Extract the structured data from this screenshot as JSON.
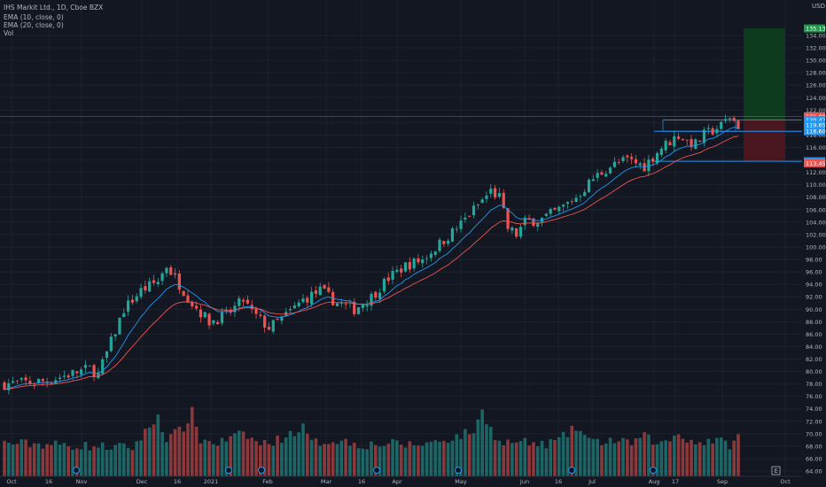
{
  "legend": {
    "symbol": "IHS Markit Ltd., 1D, Cboe BZX",
    "ema10": "EMA (10, close, 0)",
    "ema20": "EMA (20, close, 0)",
    "vol": "Vol"
  },
  "currency": "USD",
  "scale_button": "E",
  "colors": {
    "background": "#131722",
    "grid": "#1e2230",
    "up": "#26a69a",
    "down": "#ef5350",
    "ema10": "#2196f3",
    "ema20": "#ef5350",
    "axis_text": "#b2b5be",
    "profit_zone": "#0e3b1e",
    "loss_zone": "#4a1720",
    "level_line": "#2196f3"
  },
  "price_labels": [
    {
      "value": "135.13",
      "color": "#1b9a4a"
    },
    {
      "value": "121.00",
      "color": "#ef5350"
    },
    {
      "value": "120.42",
      "color": "#2196f3"
    },
    {
      "value": "119.65",
      "color": "#2196f3"
    },
    {
      "value": "118.60",
      "color": "#2196f3"
    },
    {
      "value": "113.78",
      "color": "#2196f3"
    },
    {
      "value": "113.45",
      "color": "#ef5350"
    }
  ],
  "chart_data": {
    "type": "candlestick",
    "title": "IHS Markit Ltd., 1D, Cboe BZX",
    "y_axis": {
      "min": 64,
      "max": 136,
      "ticks": [
        "64.00",
        "66.00",
        "68.00",
        "70.00",
        "72.00",
        "74.00",
        "76.00",
        "78.00",
        "80.00",
        "82.00",
        "84.00",
        "86.00",
        "88.00",
        "90.00",
        "92.00",
        "94.00",
        "96.00",
        "98.00",
        "100.00",
        "102.00",
        "104.00",
        "106.00",
        "108.00",
        "110.00",
        "112.00",
        "114.00",
        "116.00",
        "118.00",
        "120.00",
        "122.00",
        "124.00",
        "126.00",
        "128.00",
        "130.00",
        "132.00",
        "134.00"
      ]
    },
    "x_axis": {
      "ticks": [
        "Oct",
        "16",
        "Nov",
        "Dec",
        "16",
        "2021",
        "Feb",
        "Mar",
        "16",
        "Apr",
        "May",
        "Jun",
        "16",
        "Jul",
        "Aug",
        "17",
        "Sep",
        "Oct"
      ]
    },
    "series_names": [
      "EMA (10, close, 0)",
      "EMA (20, close, 0)",
      "Vol"
    ],
    "price_keypoints": [
      [
        0,
        78
      ],
      [
        10,
        78.5
      ],
      [
        20,
        80.5
      ],
      [
        22,
        79.5
      ],
      [
        24,
        83
      ],
      [
        28,
        90
      ],
      [
        32,
        93
      ],
      [
        36,
        94.5
      ],
      [
        38,
        97
      ],
      [
        40,
        95
      ],
      [
        44,
        91
      ],
      [
        48,
        88
      ],
      [
        52,
        89
      ],
      [
        56,
        91.5
      ],
      [
        58,
        89.5
      ],
      [
        62,
        87
      ],
      [
        66,
        89
      ],
      [
        70,
        91.5
      ],
      [
        74,
        93
      ],
      [
        78,
        91
      ],
      [
        82,
        90
      ],
      [
        86,
        92
      ],
      [
        90,
        95
      ],
      [
        94,
        97
      ],
      [
        98,
        98
      ],
      [
        102,
        100.5
      ],
      [
        106,
        103
      ],
      [
        110,
        106
      ],
      [
        114,
        109
      ],
      [
        116,
        108
      ],
      [
        118,
        103
      ],
      [
        120,
        102
      ],
      [
        122,
        104
      ],
      [
        126,
        104.5
      ],
      [
        130,
        106
      ],
      [
        134,
        108
      ],
      [
        138,
        111
      ],
      [
        142,
        113
      ],
      [
        146,
        114
      ],
      [
        150,
        113
      ],
      [
        154,
        116
      ],
      [
        158,
        118
      ],
      [
        160,
        117
      ],
      [
        162,
        116.5
      ],
      [
        164,
        118
      ],
      [
        168,
        119.5
      ],
      [
        170,
        121
      ],
      [
        172,
        119.5
      ]
    ],
    "volume_keypoints": [
      [
        0,
        68.5
      ],
      [
        10,
        68.3
      ],
      [
        20,
        68.0
      ],
      [
        30,
        67.8
      ],
      [
        34,
        71
      ],
      [
        36,
        73
      ],
      [
        38,
        69
      ],
      [
        40,
        70
      ],
      [
        42,
        71
      ],
      [
        44,
        73.5
      ],
      [
        46,
        69
      ],
      [
        50,
        68.5
      ],
      [
        56,
        70
      ],
      [
        60,
        68.3
      ],
      [
        64,
        69
      ],
      [
        70,
        71
      ],
      [
        72,
        68.5
      ],
      [
        78,
        69
      ],
      [
        84,
        68.2
      ],
      [
        90,
        68.4
      ],
      [
        96,
        68.2
      ],
      [
        100,
        68.6
      ],
      [
        106,
        69.5
      ],
      [
        110,
        70.5
      ],
      [
        112,
        73.5
      ],
      [
        116,
        68.5
      ],
      [
        120,
        68.7
      ],
      [
        126,
        68.2
      ],
      [
        130,
        69
      ],
      [
        134,
        71
      ],
      [
        138,
        68.5
      ],
      [
        142,
        69
      ],
      [
        146,
        68.4
      ],
      [
        150,
        69.5
      ],
      [
        154,
        68.3
      ],
      [
        158,
        70
      ],
      [
        162,
        68.5
      ],
      [
        166,
        69
      ],
      [
        170,
        68.3
      ],
      [
        172,
        69.5
      ]
    ],
    "position": {
      "entry": 120.42,
      "target": 135.13,
      "stop": 113.78
    },
    "levels": [
      120.42,
      118.6,
      113.78,
      121.0
    ]
  }
}
